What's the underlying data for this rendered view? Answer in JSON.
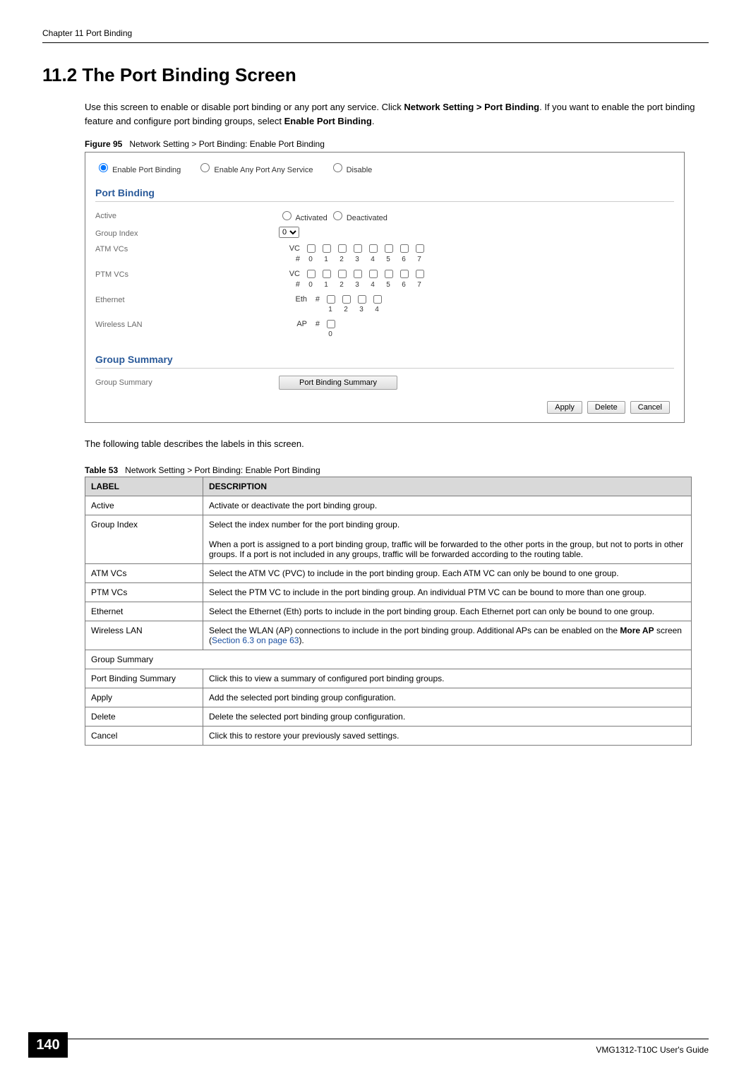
{
  "header": {
    "chapter_line": "Chapter 11 Port Binding"
  },
  "section": {
    "number_title": "11.2  The Port Binding Screen",
    "intro_pre": "Use this screen to enable or disable port binding or any port any service. Click ",
    "intro_bold1": "Network Setting > Port Binding",
    "intro_mid": ". If you want to enable the port binding feature and configure port binding groups, select ",
    "intro_bold2": "Enable Port Binding",
    "intro_end": "."
  },
  "figure": {
    "label": "Figure 95",
    "caption": "Network Setting > Port Binding: Enable Port Binding",
    "radios": {
      "opt1": "Enable Port Binding",
      "opt2": "Enable Any Port Any Service",
      "opt3": "Disable",
      "selected": "opt1"
    },
    "section1": "Port Binding",
    "rows": {
      "active": {
        "label": "Active",
        "opt_activated": "Activated",
        "opt_deactivated": "Deactivated"
      },
      "group_index": {
        "label": "Group Index",
        "value": "0"
      },
      "atm": {
        "label": "ATM VCs",
        "vc_prefix": "VC",
        "num_prefix": "#",
        "nums": [
          "0",
          "1",
          "2",
          "3",
          "4",
          "5",
          "6",
          "7"
        ]
      },
      "ptm": {
        "label": "PTM VCs",
        "vc_prefix": "VC",
        "num_prefix": "#",
        "nums": [
          "0",
          "1",
          "2",
          "3",
          "4",
          "5",
          "6",
          "7"
        ]
      },
      "eth": {
        "label": "Ethernet",
        "eth_prefix": "Eth",
        "num_prefix": "#",
        "nums": [
          "1",
          "2",
          "3",
          "4"
        ]
      },
      "wlan": {
        "label": "Wireless LAN",
        "ap_prefix": "AP",
        "num_prefix": "#",
        "nums": [
          "0"
        ]
      }
    },
    "section2": "Group Summary",
    "group_summary_label": "Group Summary",
    "summary_btn": "Port Binding Summary",
    "buttons": {
      "apply": "Apply",
      "delete": "Delete",
      "cancel": "Cancel"
    }
  },
  "post_figure": "The following table describes the labels in this screen.",
  "table": {
    "label": "Table 53",
    "caption": "Network Setting > Port Binding: Enable Port Binding",
    "col1": "LABEL",
    "col2": "DESCRIPTION",
    "rows": [
      {
        "label": "Active",
        "desc": "Activate or deactivate the port binding group."
      },
      {
        "label": "Group Index",
        "desc": "Select the index number for the port binding group.\n\nWhen a port is assigned to a port binding group, traffic will be forwarded to the other ports in the group, but not to ports in other groups. If a port is not included in any groups, traffic will be forwarded according to the routing table."
      },
      {
        "label": "ATM VCs",
        "desc": "Select the ATM VC (PVC) to include in the port binding group. Each ATM VC can only be bound to one group."
      },
      {
        "label": "PTM VCs",
        "desc": "Select the PTM VC to include in the port binding group. An individual PTM VC can be bound to more than one group."
      },
      {
        "label": "Ethernet",
        "desc": "Select the Ethernet (Eth) ports to include in the port binding group. Each Ethernet port can only be bound to one group."
      },
      {
        "label": "Wireless LAN",
        "desc_pre": "Select the WLAN (AP) connections to include in the port binding group. Additional APs can be enabled on the ",
        "desc_bold": "More AP",
        "desc_mid": " screen (",
        "desc_link": "Section 6.3 on page 63",
        "desc_end": ")."
      },
      {
        "section": "Group Summary"
      },
      {
        "label": "Port Binding Summary",
        "desc": "Click this to view a summary of configured port binding groups."
      },
      {
        "label": "Apply",
        "desc": "Add the selected port binding group configuration."
      },
      {
        "label": "Delete",
        "desc": "Delete the selected port binding group configuration."
      },
      {
        "label": "Cancel",
        "desc": "Click this to restore your previously saved settings."
      }
    ]
  },
  "footer": {
    "page_num": "140",
    "guide": "VMG1312-T10C User's Guide"
  }
}
